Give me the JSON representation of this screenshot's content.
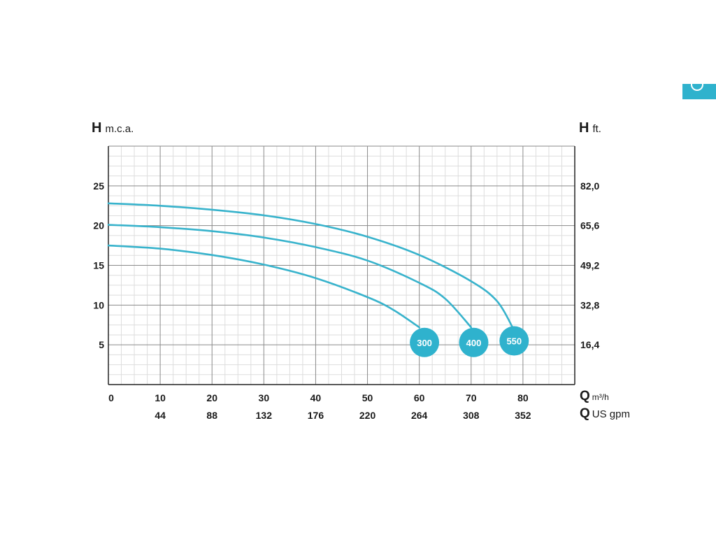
{
  "colors": {
    "curve": "#38b3cc",
    "badge": "#2fb2cd",
    "grid_major": "#8a8a8a",
    "grid_minor": "#dddddd",
    "axis": "#222222"
  },
  "corner_tab": {
    "icon": "curved-glyph-icon"
  },
  "axis_titles": {
    "left": {
      "symbol": "H",
      "unit": "m.c.a."
    },
    "right": {
      "symbol": "H",
      "unit": "ft."
    },
    "x_primary": {
      "symbol": "Q",
      "unit": "m³/h"
    },
    "x_secondary": {
      "symbol": "Q",
      "unit": "US gpm"
    }
  },
  "chart_data": {
    "type": "line",
    "grid": true,
    "xlim": [
      0,
      90
    ],
    "ylim": [
      0,
      30
    ],
    "x_ticks": [
      {
        "value": 0,
        "label": "0"
      },
      {
        "value": 10,
        "label": "10"
      },
      {
        "value": 20,
        "label": "20"
      },
      {
        "value": 30,
        "label": "30"
      },
      {
        "value": 40,
        "label": "40"
      },
      {
        "value": 50,
        "label": "50"
      },
      {
        "value": 60,
        "label": "60"
      },
      {
        "value": 70,
        "label": "70"
      },
      {
        "value": 80,
        "label": "80"
      }
    ],
    "x2_ticks": [
      {
        "value": 10,
        "label": "44"
      },
      {
        "value": 20,
        "label": "88"
      },
      {
        "value": 30,
        "label": "132"
      },
      {
        "value": 40,
        "label": "176"
      },
      {
        "value": 50,
        "label": "220"
      },
      {
        "value": 60,
        "label": "264"
      },
      {
        "value": 70,
        "label": "308"
      },
      {
        "value": 80,
        "label": "352"
      }
    ],
    "y_ticks": [
      {
        "value": 5,
        "label": "5"
      },
      {
        "value": 10,
        "label": "10"
      },
      {
        "value": 15,
        "label": "15"
      },
      {
        "value": 20,
        "label": "20"
      },
      {
        "value": 25,
        "label": "25"
      }
    ],
    "y2_ticks": [
      {
        "value": 5,
        "label": "16,4"
      },
      {
        "value": 10,
        "label": "32,8"
      },
      {
        "value": 15,
        "label": "49,2"
      },
      {
        "value": 20,
        "label": "65,6"
      },
      {
        "value": 25,
        "label": "82,0"
      }
    ],
    "series": [
      {
        "name": "300",
        "x": [
          0,
          10,
          20,
          30,
          40,
          50,
          55,
          60
        ],
        "y": [
          17.5,
          17.1,
          16.3,
          15.1,
          13.4,
          11.0,
          9.4,
          7.2
        ]
      },
      {
        "name": "400",
        "x": [
          0,
          10,
          20,
          30,
          40,
          50,
          60,
          65,
          70
        ],
        "y": [
          20.1,
          19.8,
          19.3,
          18.5,
          17.3,
          15.6,
          12.8,
          10.8,
          7.2
        ]
      },
      {
        "name": "550",
        "x": [
          0,
          10,
          20,
          30,
          40,
          50,
          60,
          70,
          75,
          78
        ],
        "y": [
          22.8,
          22.5,
          22.0,
          21.3,
          20.2,
          18.6,
          16.3,
          13.0,
          10.5,
          7.2
        ]
      }
    ],
    "badges": [
      {
        "label": "300",
        "x": 61,
        "y": 5.3
      },
      {
        "label": "400",
        "x": 70.5,
        "y": 5.3
      },
      {
        "label": "550",
        "x": 78.3,
        "y": 5.5
      }
    ]
  }
}
